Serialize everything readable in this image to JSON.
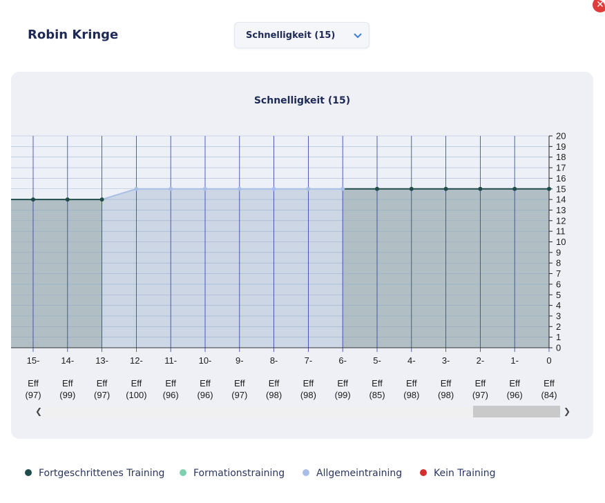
{
  "header": {
    "player_name": "Robin Kringe",
    "skill_select_value": "Schnelligkeit (15)"
  },
  "colors": {
    "fortgeschrittenes": "#1f4b4b",
    "formation": "#7fd1ae",
    "allgemein": "#a9bfe6",
    "kein": "#d03030"
  },
  "legend": [
    {
      "label": "Fortgeschrittenes Training",
      "color": "#1f4b4b"
    },
    {
      "label": "Formationstraining",
      "color": "#7fd1ae"
    },
    {
      "label": "Allgemeintraining",
      "color": "#a9bfe6"
    },
    {
      "label": "Kein Training",
      "color": "#d03030"
    }
  ],
  "chart_data": {
    "type": "area",
    "title": "Schnelligkeit (15)",
    "ylim": [
      0,
      20
    ],
    "yticks": [
      "0",
      "1",
      "2",
      "3",
      "4",
      "5",
      "6",
      "7",
      "8",
      "9",
      "10",
      "11",
      "12",
      "13",
      "14",
      "15",
      "16",
      "17",
      "18",
      "19",
      "20"
    ],
    "x_labels": [
      "15-",
      "14-",
      "13-",
      "12-",
      "11-",
      "10-",
      "9-",
      "8-",
      "7-",
      "6-",
      "5-",
      "4-",
      "3-",
      "2-",
      "1-",
      "0"
    ],
    "efficiency_word": [
      "Eff",
      "Eff",
      "Eff",
      "Eff",
      "Eff",
      "Eff",
      "Eff",
      "Eff",
      "Eff",
      "Eff",
      "Eff",
      "Eff",
      "Eff",
      "Eff",
      "Eff",
      "Eff"
    ],
    "efficiency": [
      "(97)",
      "(99)",
      "(97)",
      "(100)",
      "(96)",
      "(96)",
      "(97)",
      "(98)",
      "(98)",
      "(99)",
      "(85)",
      "(98)",
      "(98)",
      "(97)",
      "(96)",
      "(84)"
    ],
    "values": [
      14,
      14,
      14,
      15,
      15,
      15,
      15,
      15,
      15,
      15,
      15,
      15,
      15,
      15,
      15,
      15
    ],
    "training": [
      "fortgeschrittenes",
      "fortgeschrittenes",
      "fortgeschrittenes",
      "allgemein",
      "allgemein",
      "allgemein",
      "allgemein",
      "allgemein",
      "allgemein",
      "allgemein",
      "fortgeschrittenes",
      "fortgeschrittenes",
      "fortgeschrittenes",
      "fortgeschrittenes",
      "fortgeschrittenes",
      "fortgeschrittenes"
    ]
  }
}
